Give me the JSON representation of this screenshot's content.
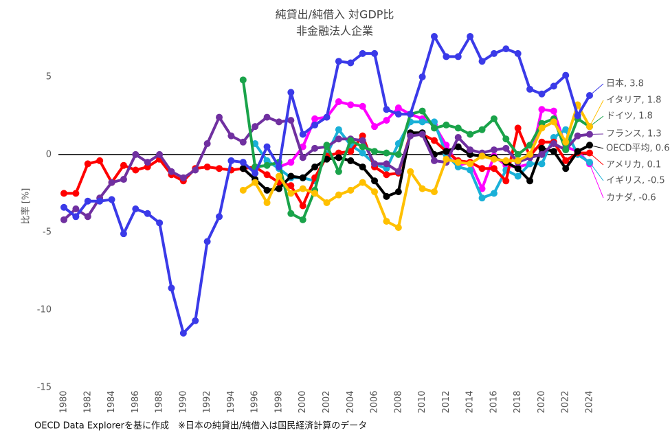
{
  "chart_data": {
    "type": "line",
    "title": "純貸出/純借入 対GDP比",
    "subtitle": "非金融法人企業",
    "y_label": "比率 [%]",
    "footnote": "OECD Data Explorerを基に作成　※日本の純貸出/純借入は国民経済計算のデータ",
    "x": [
      1980,
      1981,
      1982,
      1983,
      1984,
      1985,
      1986,
      1987,
      1988,
      1989,
      1990,
      1991,
      1992,
      1993,
      1994,
      1995,
      1996,
      1997,
      1998,
      1999,
      2000,
      2001,
      2002,
      2003,
      2004,
      2005,
      2006,
      2007,
      2008,
      2009,
      2010,
      2011,
      2012,
      2013,
      2014,
      2015,
      2016,
      2017,
      2018,
      2019,
      2020,
      2021,
      2022,
      2023,
      2024
    ],
    "xlim": [
      1980,
      2024
    ],
    "xticks": [
      1980,
      1982,
      1984,
      1986,
      1988,
      1990,
      1992,
      1994,
      1996,
      1998,
      2000,
      2002,
      2004,
      2006,
      2008,
      2010,
      2012,
      2014,
      2016,
      2018,
      2020,
      2022,
      2024
    ],
    "ylim": [
      -15,
      8
    ],
    "yticks": [
      -15,
      -10,
      -5,
      0,
      5
    ],
    "zero_line": true,
    "series": [
      {
        "name": "日本, 3.8",
        "color": "#3a3ae8",
        "values": [
          -3.4,
          -4.0,
          -3.0,
          -3.0,
          -2.9,
          -5.1,
          -3.5,
          -3.8,
          -4.4,
          -8.6,
          -11.5,
          -10.7,
          -5.6,
          -4.0,
          -0.4,
          -0.5,
          -1.2,
          0.5,
          -0.8,
          4.0,
          1.3,
          1.9,
          2.4,
          6.0,
          5.9,
          6.5,
          6.5,
          2.9,
          2.6,
          2.6,
          5.0,
          7.6,
          6.3,
          6.3,
          7.6,
          6.0,
          6.5,
          6.8,
          6.5,
          4.2,
          3.9,
          4.4,
          5.1,
          2.5,
          3.8
        ]
      },
      {
        "name": "イタリア, 1.8",
        "color": "#ffc000",
        "values": [
          null,
          null,
          null,
          null,
          null,
          null,
          null,
          null,
          null,
          null,
          null,
          null,
          null,
          null,
          null,
          -2.3,
          -1.8,
          -3.1,
          -1.4,
          -2.5,
          -2.2,
          -2.5,
          -3.1,
          -2.6,
          -2.3,
          -1.8,
          -2.4,
          -4.3,
          -4.7,
          -1.1,
          -2.2,
          -2.4,
          -0.3,
          -0.5,
          -0.6,
          -0.1,
          -0.3,
          -0.4,
          -0.4,
          0.0,
          1.7,
          2.1,
          0.8,
          3.2,
          1.8
        ]
      },
      {
        "name": "ドイツ, 1.8",
        "color": "#1aa34a",
        "values": [
          null,
          null,
          null,
          null,
          null,
          null,
          null,
          null,
          null,
          null,
          null,
          null,
          null,
          null,
          null,
          4.8,
          -0.8,
          -0.7,
          -0.5,
          -3.8,
          -4.2,
          -2.3,
          0.6,
          -1.1,
          0.9,
          0.5,
          0.2,
          0.1,
          0.0,
          2.6,
          2.8,
          1.7,
          1.9,
          1.7,
          1.3,
          1.6,
          2.3,
          1.0,
          0.0,
          0.6,
          2.0,
          2.3,
          0.3,
          2.3,
          1.8
        ]
      },
      {
        "name": "フランス, 1.3",
        "color": "#7030a0",
        "values": [
          -4.2,
          -3.5,
          -4.0,
          -2.8,
          -1.8,
          -1.6,
          0.0,
          -0.5,
          0.0,
          -1.1,
          -1.5,
          -1.0,
          0.7,
          2.4,
          1.2,
          0.8,
          1.8,
          2.4,
          2.1,
          2.2,
          -0.2,
          0.4,
          0.5,
          1.0,
          1.0,
          0.9,
          -0.6,
          -0.6,
          -1.1,
          1.2,
          1.3,
          -0.4,
          -0.5,
          1.1,
          0.3,
          0.1,
          0.3,
          0.4,
          -0.5,
          -0.2,
          0.0,
          0.7,
          0.3,
          1.2,
          1.3
        ]
      },
      {
        "name": "OECD平均, 0.6",
        "color": "#000000",
        "values": [
          null,
          null,
          null,
          null,
          null,
          null,
          null,
          null,
          null,
          null,
          null,
          null,
          null,
          null,
          null,
          -0.9,
          -1.6,
          -2.3,
          -2.2,
          -1.4,
          -1.5,
          -0.8,
          -0.3,
          -0.2,
          -0.4,
          -0.8,
          -1.7,
          -2.7,
          -2.4,
          1.4,
          1.4,
          0.0,
          0.2,
          0.5,
          0.0,
          -0.1,
          -0.2,
          -0.5,
          -0.9,
          -1.7,
          0.4,
          0.2,
          -0.9,
          0.2,
          0.6
        ]
      },
      {
        "name": "アメリカ, 0.1",
        "color": "#ff0000",
        "values": [
          -2.5,
          -2.5,
          -0.6,
          -0.4,
          -1.8,
          -0.7,
          -1.0,
          -0.8,
          -0.3,
          -1.3,
          -1.7,
          -0.9,
          -0.8,
          -0.9,
          -1.0,
          -0.9,
          -0.8,
          -1.3,
          -1.8,
          -2.0,
          -3.3,
          -1.5,
          -0.1,
          0.1,
          0.2,
          1.2,
          -0.8,
          -1.3,
          -1.2,
          1.3,
          1.3,
          0.9,
          0.2,
          -0.4,
          -0.5,
          -0.9,
          -0.9,
          -1.7,
          1.7,
          -0.1,
          0.8,
          0.8,
          -0.4,
          0.1,
          0.1
        ]
      },
      {
        "name": "イギリス, -0.5",
        "color": "#1ab0d8",
        "values": [
          null,
          null,
          null,
          null,
          null,
          null,
          null,
          null,
          null,
          null,
          null,
          null,
          null,
          null,
          null,
          null,
          0.7,
          -0.4,
          -0.9,
          -1.5,
          -1.5,
          -1.7,
          0.0,
          1.6,
          0.6,
          0.1,
          -0.6,
          -0.9,
          0.7,
          2.1,
          2.1,
          2.1,
          0.0,
          -0.8,
          -1.0,
          -2.8,
          -2.5,
          -1.0,
          -1.4,
          -0.6,
          -0.6,
          1.1,
          1.6,
          0.0,
          -0.5
        ]
      },
      {
        "name": "カナダ, -0.6",
        "color": "#ff00ff",
        "values": [
          null,
          null,
          null,
          null,
          null,
          null,
          null,
          null,
          null,
          null,
          null,
          null,
          null,
          null,
          null,
          null,
          null,
          null,
          -0.8,
          -0.5,
          0.5,
          2.3,
          2.4,
          3.4,
          3.2,
          3.1,
          1.8,
          2.2,
          3.0,
          2.6,
          2.3,
          1.9,
          0.6,
          -0.7,
          -0.5,
          -2.2,
          -0.1,
          -0.7,
          -0.8,
          -0.6,
          2.9,
          2.8,
          0.5,
          0.2,
          -0.6
        ]
      }
    ]
  }
}
